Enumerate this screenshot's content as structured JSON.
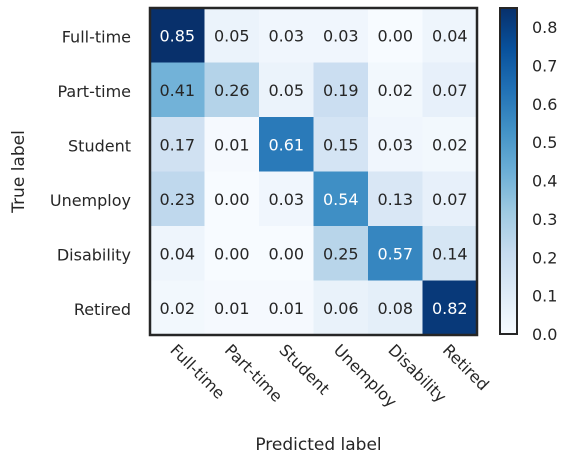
{
  "chart_data": {
    "type": "heatmap",
    "title": "",
    "xlabel": "Predicted label",
    "ylabel": "True label",
    "x_categories": [
      "Full-time",
      "Part-time",
      "Student",
      "Unemploy",
      "Disability",
      "Retired"
    ],
    "y_categories": [
      "Full-time",
      "Part-time",
      "Student",
      "Unemploy",
      "Disability",
      "Retired"
    ],
    "values": [
      [
        0.85,
        0.05,
        0.03,
        0.03,
        0.0,
        0.04
      ],
      [
        0.41,
        0.26,
        0.05,
        0.19,
        0.02,
        0.07
      ],
      [
        0.17,
        0.01,
        0.61,
        0.15,
        0.03,
        0.02
      ],
      [
        0.23,
        0.0,
        0.03,
        0.54,
        0.13,
        0.07
      ],
      [
        0.04,
        0.0,
        0.0,
        0.25,
        0.57,
        0.14
      ],
      [
        0.02,
        0.01,
        0.01,
        0.06,
        0.08,
        0.82
      ]
    ],
    "value_labels": [
      [
        "0.85",
        "0.05",
        "0.03",
        "0.03",
        "0.00",
        "0.04"
      ],
      [
        "0.41",
        "0.26",
        "0.05",
        "0.19",
        "0.02",
        "0.07"
      ],
      [
        "0.17",
        "0.01",
        "0.61",
        "0.15",
        "0.03",
        "0.02"
      ],
      [
        "0.23",
        "0.00",
        "0.03",
        "0.54",
        "0.13",
        "0.07"
      ],
      [
        "0.04",
        "0.00",
        "0.00",
        "0.25",
        "0.57",
        "0.14"
      ],
      [
        "0.02",
        "0.01",
        "0.01",
        "0.06",
        "0.08",
        "0.82"
      ]
    ],
    "colormap": "Blues",
    "color_range": [
      0.0,
      0.85
    ],
    "colorbar": {
      "ticks": [
        0.0,
        0.1,
        0.2,
        0.3,
        0.4,
        0.5,
        0.6,
        0.7,
        0.8
      ],
      "tick_labels": [
        "0.0",
        "0.1",
        "0.2",
        "0.3",
        "0.4",
        "0.5",
        "0.6",
        "0.7",
        "0.8"
      ]
    },
    "grid": false,
    "legend": "colorbar-right"
  }
}
